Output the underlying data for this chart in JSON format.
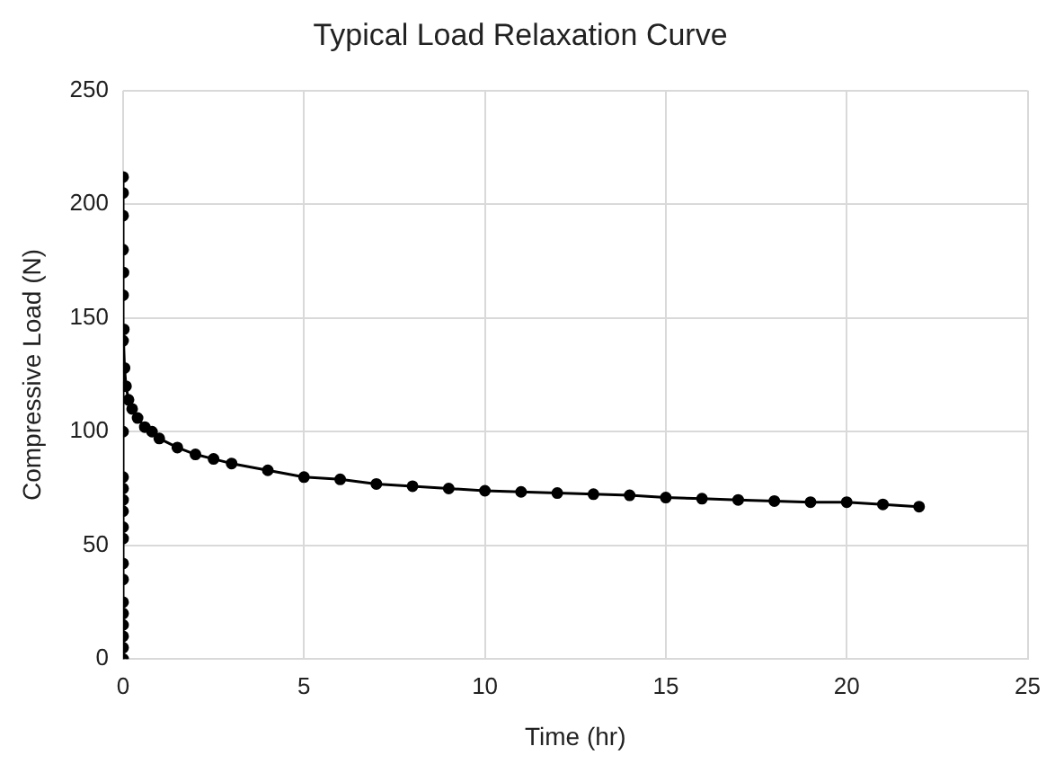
{
  "chart_data": {
    "type": "line",
    "title": "Typical Load Relaxation Curve",
    "xlabel": "Time (hr)",
    "ylabel": "Compressive Load (N)",
    "x": [
      0,
      0,
      0,
      0,
      0,
      0,
      0,
      0,
      0,
      0,
      0,
      0,
      0,
      0,
      0,
      0,
      0,
      0,
      0,
      0,
      0,
      0,
      0.01,
      0.02,
      0.04,
      0.08,
      0.15,
      0.25,
      0.4,
      0.6,
      0.8,
      1,
      1.5,
      2,
      2.5,
      3,
      4,
      5,
      6,
      7,
      8,
      9,
      10,
      11,
      12,
      13,
      14,
      15,
      16,
      17,
      18,
      19,
      20,
      21,
      22
    ],
    "series": [
      {
        "color": "#000000",
        "values": [
          0,
          5,
          10,
          15,
          20,
          25,
          35,
          42,
          53,
          58,
          65,
          70,
          75,
          80,
          100,
          120,
          140,
          160,
          180,
          195,
          205,
          212,
          170,
          145,
          128,
          120,
          114,
          110,
          106,
          102,
          100,
          97,
          93,
          90,
          88,
          86,
          83,
          80,
          79,
          77,
          76,
          75,
          74,
          73.5,
          73,
          72.5,
          72,
          71,
          70.5,
          70,
          69.5,
          69,
          69,
          68,
          67
        ]
      }
    ],
    "xlim": [
      0,
      25
    ],
    "xticks": [
      0,
      5,
      10,
      15,
      20,
      25
    ],
    "ylim": [
      0,
      250
    ],
    "yticks": [
      0,
      50,
      100,
      150,
      200,
      250
    ],
    "grid": true,
    "legend": false,
    "marker": "circle",
    "line_style": "solid"
  }
}
